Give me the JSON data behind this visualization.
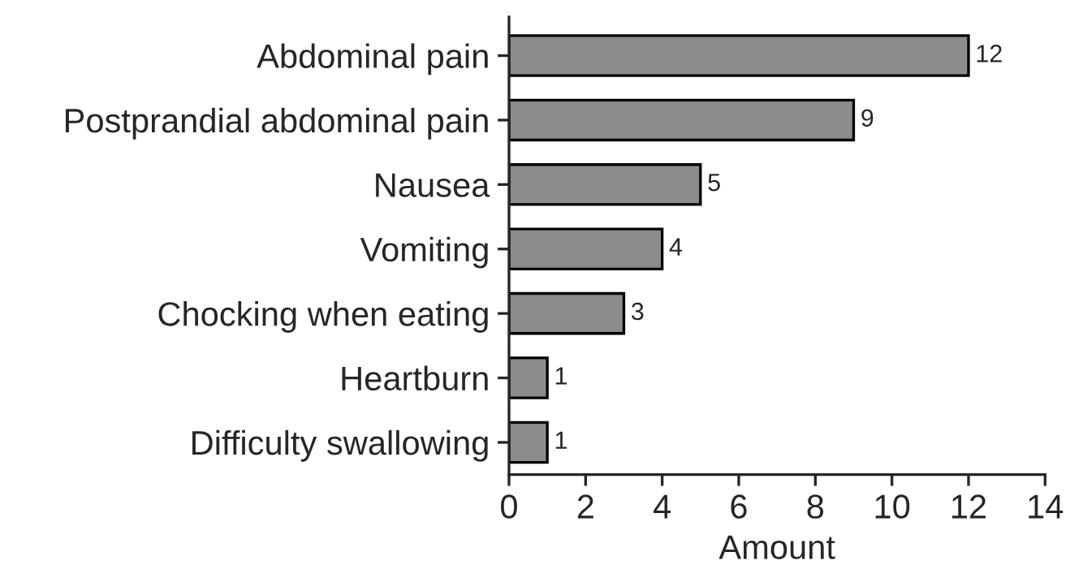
{
  "chart_data": {
    "type": "bar",
    "orientation": "horizontal",
    "categories": [
      "Abdominal pain",
      "Postprandial abdominal pain",
      "Nausea",
      "Vomiting",
      "Chocking when eating",
      "Heartburn",
      "Difficulty swallowing"
    ],
    "values": [
      12,
      9,
      5,
      4,
      3,
      1,
      1
    ],
    "color": "#8c8c8c",
    "xlabel": "Amount",
    "xlim": [
      0,
      14
    ],
    "xticks": [
      0,
      2,
      4,
      6,
      8,
      10,
      12,
      14
    ],
    "data_labels": true,
    "grid": false,
    "legend": false
  }
}
